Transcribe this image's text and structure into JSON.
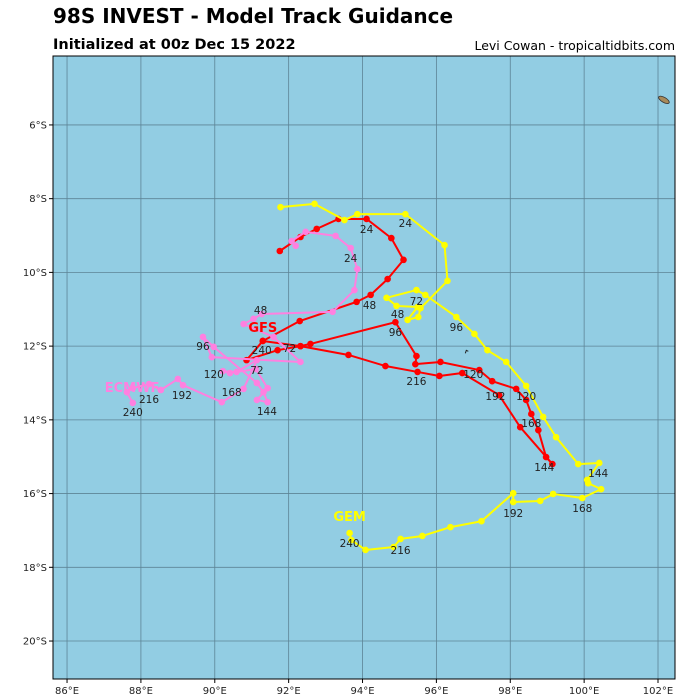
{
  "header": {
    "title": "98S INVEST - Model Track Guidance",
    "subtitle": "Initialized at 00z Dec 15 2022",
    "credit": "Levi Cowan - tropicaltidbits.com"
  },
  "map": {
    "lon_range": [
      85.62,
      102.46
    ],
    "lat_range": [
      -4.13,
      -21.03
    ],
    "ocean_color": "#92cde3",
    "grid_color": "#5d8496",
    "land_color": "#a88a5a",
    "lon_ticks": [
      {
        "v": 86,
        "label": "86°E"
      },
      {
        "v": 88,
        "label": "88°E"
      },
      {
        "v": 90,
        "label": "90°E"
      },
      {
        "v": 92,
        "label": "92°E"
      },
      {
        "v": 94,
        "label": "94°E"
      },
      {
        "v": 96,
        "label": "96°E"
      },
      {
        "v": 98,
        "label": "98°E"
      },
      {
        "v": 100,
        "label": "100°E"
      },
      {
        "v": 102,
        "label": "102°E"
      }
    ],
    "lat_ticks": [
      {
        "v": -6,
        "label": "6°S"
      },
      {
        "v": -8,
        "label": "8°S"
      },
      {
        "v": -10,
        "label": "10°S"
      },
      {
        "v": -12,
        "label": "12°S"
      },
      {
        "v": -14,
        "label": "14°S"
      },
      {
        "v": -16,
        "label": "16°S"
      },
      {
        "v": -18,
        "label": "18°S"
      },
      {
        "v": -20,
        "label": "20°S"
      }
    ],
    "land": [
      {
        "lon": 102.16,
        "lat": -5.32
      },
      {
        "lon": 96.81,
        "lat": -12.14
      }
    ]
  },
  "models": [
    {
      "name": "GFS",
      "color": "#ff0000",
      "label_pos": [
        91.3,
        -11.48
      ],
      "track": [
        [
          91.76,
          -9.42
        ],
        [
          92.32,
          -9.04
        ],
        [
          92.76,
          -8.82
        ],
        [
          93.35,
          -8.55
        ],
        [
          94.11,
          -8.55
        ],
        [
          94.78,
          -9.07
        ],
        [
          95.11,
          -9.66
        ],
        [
          94.68,
          -10.18
        ],
        [
          94.22,
          -10.61
        ],
        [
          93.84,
          -10.8
        ],
        [
          92.3,
          -11.32
        ],
        [
          91.3,
          -11.86
        ],
        [
          90.86,
          -12.38
        ],
        [
          91.7,
          -12.11
        ],
        [
          92.32,
          -12.0
        ],
        [
          92.59,
          -11.94
        ],
        [
          94.89,
          -11.35
        ],
        [
          95.46,
          -12.27
        ],
        [
          95.43,
          -12.49
        ],
        [
          96.11,
          -12.43
        ],
        [
          97.16,
          -12.65
        ],
        [
          97.51,
          -12.95
        ],
        [
          98.16,
          -13.16
        ],
        [
          98.43,
          -13.46
        ],
        [
          98.57,
          -13.84
        ],
        [
          98.76,
          -14.28
        ],
        [
          98.97,
          -15.01
        ],
        [
          99.14,
          -15.2
        ],
        [
          98.27,
          -14.2
        ],
        [
          97.7,
          -13.33
        ],
        [
          96.7,
          -12.73
        ],
        [
          96.08,
          -12.81
        ],
        [
          95.49,
          -12.7
        ],
        [
          94.62,
          -12.54
        ],
        [
          93.62,
          -12.24
        ],
        [
          92.32,
          -12.0
        ],
        [
          91.3,
          -11.86
        ]
      ],
      "hour_labels": [
        {
          "t": "24",
          "pos": [
            94.11,
            -8.82
          ]
        },
        {
          "t": "48",
          "pos": [
            94.19,
            -10.88
          ]
        },
        {
          "t": "72",
          "pos": [
            91.59,
            -12.05
          ]
        },
        {
          "t": "96",
          "pos": [
            94.89,
            -11.62
          ]
        },
        {
          "t": "120",
          "pos": [
            97.16,
            -12.89
          ]
        },
        {
          "t": "144",
          "pos": [
            98.92,
            -15.28
          ]
        },
        {
          "t": "168",
          "pos": [
            98.57,
            -14.09
          ]
        },
        {
          "t": "192",
          "pos": [
            97.49,
            -13.19
          ]
        },
        {
          "t": "216",
          "pos": [
            95.46,
            -12.95
          ]
        },
        {
          "t": "240",
          "pos": [
            91.27,
            -12.11
          ]
        }
      ]
    },
    {
      "name": "ECMWF",
      "color": "#ff80e0",
      "label_pos": [
        87.76,
        -13.19
      ],
      "track": [
        [
          92.19,
          -9.28
        ],
        [
          92.08,
          -9.15
        ],
        [
          92.46,
          -8.9
        ],
        [
          93.27,
          -9.01
        ],
        [
          93.68,
          -9.34
        ],
        [
          93.86,
          -9.91
        ],
        [
          93.78,
          -10.48
        ],
        [
          93.19,
          -11.07
        ],
        [
          91.27,
          -11.13
        ],
        [
          91.05,
          -11.26
        ],
        [
          90.78,
          -11.4
        ],
        [
          91.59,
          -11.75
        ],
        [
          92.32,
          -12.43
        ],
        [
          89.92,
          -12.3
        ],
        [
          89.68,
          -11.75
        ],
        [
          89.97,
          -12.02
        ],
        [
          91.14,
          -13.0
        ],
        [
          91.32,
          -13.25
        ],
        [
          91.43,
          -13.52
        ],
        [
          91.14,
          -13.46
        ],
        [
          91.43,
          -13.14
        ],
        [
          91.11,
          -12.62
        ],
        [
          90.41,
          -12.73
        ],
        [
          90.22,
          -12.68
        ],
        [
          90.59,
          -12.7
        ],
        [
          91.14,
          -12.38
        ],
        [
          90.78,
          -13.16
        ],
        [
          90.19,
          -13.52
        ],
        [
          89.14,
          -13.06
        ],
        [
          89.0,
          -12.89
        ],
        [
          88.54,
          -13.19
        ],
        [
          88.22,
          -13.03
        ],
        [
          87.78,
          -13.14
        ],
        [
          87.62,
          -13.25
        ],
        [
          87.78,
          -13.54
        ]
      ],
      "hour_labels": [
        {
          "t": "24",
          "pos": [
            93.68,
            -9.61
          ]
        },
        {
          "t": "48",
          "pos": [
            91.24,
            -11.37
          ]
        },
        {
          "t": "72",
          "pos": [
            91.14,
            -12.65
          ]
        },
        {
          "t": "96",
          "pos": [
            89.68,
            -12.0
          ]
        },
        {
          "t": "120",
          "pos": [
            90.19,
            -12.92
          ]
        },
        {
          "t": "144",
          "pos": [
            91.41,
            -13.76
          ]
        },
        {
          "t": "168",
          "pos": [
            90.35,
            -13.06
          ]
        },
        {
          "t": "192",
          "pos": [
            89.11,
            -13.33
          ]
        },
        {
          "t": "216",
          "pos": [
            88.22,
            -13.44
          ]
        },
        {
          "t": "240",
          "pos": [
            87.78,
            -13.79
          ]
        }
      ]
    },
    {
      "name": "GEM",
      "color": "#ffff00",
      "label_pos": [
        93.65,
        -16.69
      ],
      "track": [
        [
          91.78,
          -8.23
        ],
        [
          92.7,
          -8.14
        ],
        [
          93.51,
          -8.58
        ],
        [
          93.86,
          -8.42
        ],
        [
          95.16,
          -8.42
        ],
        [
          96.22,
          -9.26
        ],
        [
          96.3,
          -10.23
        ],
        [
          95.57,
          -10.97
        ],
        [
          95.51,
          -11.21
        ],
        [
          95.22,
          -11.29
        ],
        [
          95.49,
          -10.94
        ],
        [
          94.92,
          -10.91
        ],
        [
          94.65,
          -10.69
        ],
        [
          95.46,
          -10.48
        ],
        [
          95.7,
          -10.61
        ],
        [
          96.54,
          -11.21
        ],
        [
          97.03,
          -11.67
        ],
        [
          97.38,
          -12.11
        ],
        [
          97.89,
          -12.43
        ],
        [
          98.43,
          -13.08
        ],
        [
          98.89,
          -13.92
        ],
        [
          99.24,
          -14.47
        ],
        [
          99.84,
          -15.2
        ],
        [
          100.41,
          -15.17
        ],
        [
          100.08,
          -15.63
        ],
        [
          100.11,
          -15.72
        ],
        [
          100.46,
          -15.88
        ],
        [
          99.95,
          -16.12
        ],
        [
          99.16,
          -16.01
        ],
        [
          98.81,
          -16.2
        ],
        [
          98.08,
          -16.23
        ],
        [
          98.08,
          -15.99
        ],
        [
          97.22,
          -16.75
        ],
        [
          96.38,
          -16.91
        ],
        [
          95.62,
          -17.15
        ],
        [
          95.03,
          -17.23
        ],
        [
          94.84,
          -17.45
        ],
        [
          94.08,
          -17.53
        ],
        [
          93.7,
          -17.26
        ],
        [
          93.65,
          -17.07
        ]
      ],
      "hour_labels": [
        {
          "t": "24",
          "pos": [
            95.16,
            -8.66
          ]
        },
        {
          "t": "48",
          "pos": [
            94.95,
            -11.13
          ]
        },
        {
          "t": "72",
          "pos": [
            95.46,
            -10.78
          ]
        },
        {
          "t": "96",
          "pos": [
            96.54,
            -11.48
          ]
        },
        {
          "t": "120",
          "pos": [
            98.43,
            -13.35
          ]
        },
        {
          "t": "144",
          "pos": [
            100.38,
            -15.44
          ]
        },
        {
          "t": "168",
          "pos": [
            99.95,
            -16.39
          ]
        },
        {
          "t": "192",
          "pos": [
            98.08,
            -16.53
          ]
        },
        {
          "t": "216",
          "pos": [
            95.03,
            -17.53
          ]
        },
        {
          "t": "240",
          "pos": [
            93.65,
            -17.34
          ]
        }
      ]
    }
  ]
}
